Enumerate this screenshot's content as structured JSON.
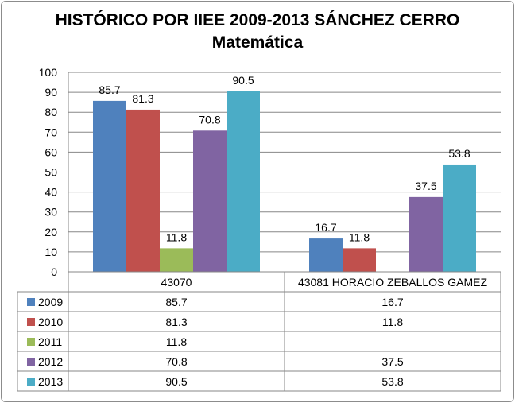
{
  "chart_data": {
    "type": "bar",
    "title": "HISTÓRICO POR IIEE 2009-2013 SÁNCHEZ CERRO",
    "subtitle": "Matemática",
    "categories": [
      "43070",
      "43081 HORACIO ZEBALLOS GAMEZ"
    ],
    "ylim": [
      0,
      100
    ],
    "yticks": [
      0,
      10,
      20,
      30,
      40,
      50,
      60,
      70,
      80,
      90,
      100
    ],
    "grid": true,
    "legend": "data-table",
    "series": [
      {
        "name": "2009",
        "color": "#4F81BD",
        "values": [
          85.7,
          16.7
        ]
      },
      {
        "name": "2010",
        "color": "#C0504D",
        "values": [
          81.3,
          11.8
        ]
      },
      {
        "name": "2011",
        "color": "#9BBB59",
        "values": [
          11.8,
          null
        ]
      },
      {
        "name": "2012",
        "color": "#8064A2",
        "values": [
          70.8,
          37.5
        ]
      },
      {
        "name": "2013",
        "color": "#4BACC6",
        "values": [
          90.5,
          53.8
        ]
      }
    ]
  }
}
